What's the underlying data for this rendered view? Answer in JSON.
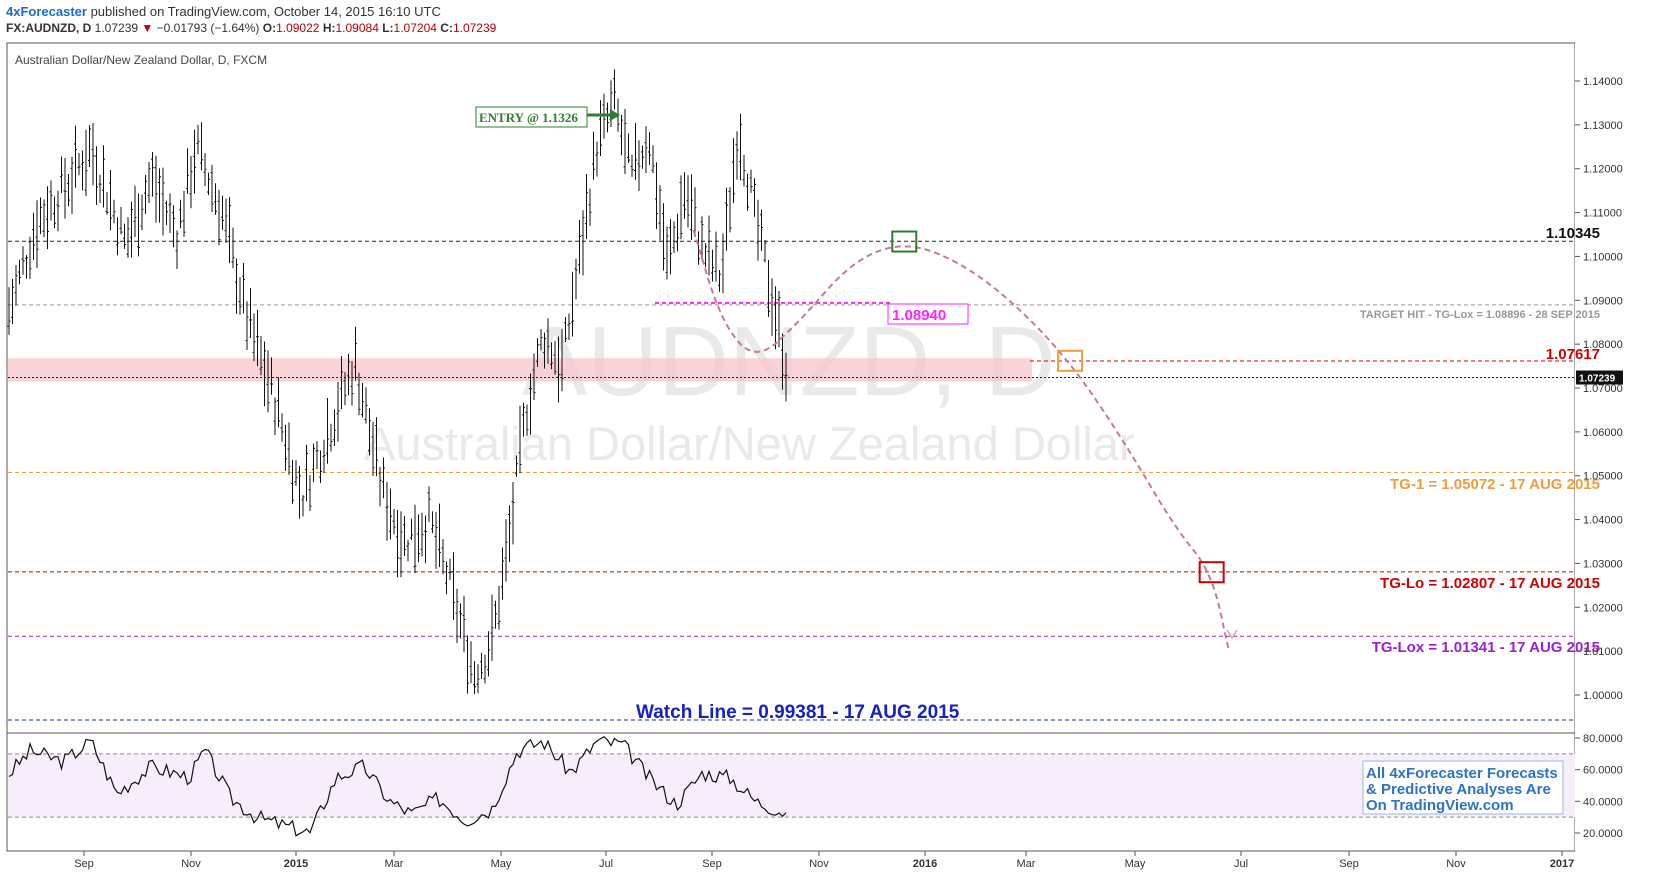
{
  "header": {
    "publisher": "4xForecaster",
    "published_text": "published on TradingView.com, October 14, 2015 16:10 UTC",
    "symbol": "FX:AUDNZD, D",
    "last": "1.07239",
    "change_arrow": "▼",
    "change": "−0.01793 (−1.64%)",
    "o_label": "O:",
    "o": "1.09022",
    "h_label": "H:",
    "h": "1.09084",
    "l_label": "L:",
    "l": "1.07204",
    "c_label": "C:",
    "c": "1.07239"
  },
  "pane_title": "Australian Dollar/New Zealand Dollar, D, FXCM",
  "watermark": {
    "symbol": "AUDNZD, D",
    "name": "Australian Dollar/New Zealand Dollar"
  },
  "colors": {
    "up": "#000000",
    "down": "#000000",
    "entry": "#2e7d32",
    "tg1": "#f39c3c",
    "tglo": "#d10000",
    "tglox": "#9b1fd6",
    "watch": "#1420c8",
    "path": "#c9789a",
    "magenta": "#ff22ff",
    "zone": "#f7c6c9"
  },
  "annotations": {
    "entry": "ENTRY @ 1.1326",
    "level_top": "1.10345",
    "level_mag": "1.08940",
    "target_hit": "TARGET HIT - TG-Lox = 1.08896 - 28 SEP 2015",
    "level_red": "1.07617",
    "tg1": "TG-1 = 1.05072 - 17 AUG 2015",
    "tglo": "TG-Lo = 1.02807 - 17 AUG 2015",
    "tglox": "TG-Lox = 1.01341 - 17 AUG 2015",
    "watch": "Watch Line = 0.99381 - 17 AUG 2015",
    "last_price_tag": "1.07239",
    "promo_line1": "All 4xForecaster Forecasts",
    "promo_line2": "& Predictive Analyses Are",
    "promo_line3": "On TradingView.com"
  },
  "chart_data": {
    "type": "line",
    "price_axis": {
      "ticks": [
        "1.14000",
        "1.13000",
        "1.12000",
        "1.11000",
        "1.10000",
        "1.09000",
        "1.08000",
        "1.07000",
        "1.06000",
        "1.05000",
        "1.04000",
        "1.03000",
        "1.02000",
        "1.01000",
        "1.00000"
      ],
      "values": [
        1.14,
        1.13,
        1.12,
        1.11,
        1.1,
        1.09,
        1.08,
        1.07,
        1.06,
        1.05,
        1.04,
        1.03,
        1.02,
        1.01,
        1.0
      ]
    },
    "indicator_axis": {
      "ticks": [
        "80.0000",
        "60.0000",
        "40.0000",
        "20.0000"
      ],
      "values": [
        80,
        60,
        40,
        20
      ],
      "bands": [
        70,
        30
      ]
    },
    "time_axis": [
      "Sep",
      "Nov",
      "2015",
      "Mar",
      "May",
      "Jul",
      "Sep",
      "Nov",
      "2016",
      "Mar",
      "May",
      "Jul",
      "Sep",
      "Nov",
      "2017"
    ],
    "levels": [
      1.10345,
      1.08896,
      1.07617,
      1.07239,
      1.05072,
      1.02807,
      1.01341,
      0.99381
    ],
    "zone": [
      1.0715,
      1.0768
    ],
    "price_path": [
      {
        "t": "2014-07-15",
        "p": 1.082
      },
      {
        "t": "2014-08-05",
        "p": 1.108
      },
      {
        "t": "2014-08-25",
        "p": 1.118
      },
      {
        "t": "2014-09-05",
        "p": 1.125
      },
      {
        "t": "2014-09-25",
        "p": 1.103
      },
      {
        "t": "2014-10-10",
        "p": 1.118
      },
      {
        "t": "2014-10-25",
        "p": 1.105
      },
      {
        "t": "2014-11-05",
        "p": 1.125
      },
      {
        "t": "2014-11-20",
        "p": 1.11
      },
      {
        "t": "2014-12-05",
        "p": 1.085
      },
      {
        "t": "2014-12-20",
        "p": 1.068
      },
      {
        "t": "2015-01-05",
        "p": 1.045
      },
      {
        "t": "2015-01-20",
        "p": 1.06
      },
      {
        "t": "2015-02-05",
        "p": 1.076
      },
      {
        "t": "2015-02-20",
        "p": 1.048
      },
      {
        "t": "2015-03-05",
        "p": 1.035
      },
      {
        "t": "2015-03-20",
        "p": 1.04
      },
      {
        "t": "2015-04-01",
        "p": 1.025
      },
      {
        "t": "2015-04-15",
        "p": 1.005
      },
      {
        "t": "2015-04-25",
        "p": 1.012
      },
      {
        "t": "2015-05-05",
        "p": 1.035
      },
      {
        "t": "2015-05-15",
        "p": 1.065
      },
      {
        "t": "2015-05-25",
        "p": 1.082
      },
      {
        "t": "2015-06-05",
        "p": 1.075
      },
      {
        "t": "2015-06-15",
        "p": 1.1
      },
      {
        "t": "2015-06-25",
        "p": 1.125
      },
      {
        "t": "2015-07-05",
        "p": 1.135
      },
      {
        "t": "2015-07-15",
        "p": 1.118
      },
      {
        "t": "2015-07-25",
        "p": 1.128
      },
      {
        "t": "2015-08-05",
        "p": 1.098
      },
      {
        "t": "2015-08-15",
        "p": 1.115
      },
      {
        "t": "2015-08-25",
        "p": 1.102
      },
      {
        "t": "2015-09-05",
        "p": 1.095
      },
      {
        "t": "2015-09-15",
        "p": 1.13
      },
      {
        "t": "2015-09-25",
        "p": 1.108
      },
      {
        "t": "2015-10-05",
        "p": 1.09
      },
      {
        "t": "2015-10-14",
        "p": 1.0724
      }
    ],
    "rsi_path": [
      {
        "t": "2014-07-15",
        "v": 52
      },
      {
        "t": "2014-08-01",
        "v": 72
      },
      {
        "t": "2014-08-20",
        "v": 65
      },
      {
        "t": "2014-09-05",
        "v": 78
      },
      {
        "t": "2014-09-20",
        "v": 45
      },
      {
        "t": "2014-10-10",
        "v": 62
      },
      {
        "t": "2014-11-01",
        "v": 55
      },
      {
        "t": "2014-11-10",
        "v": 72
      },
      {
        "t": "2014-11-25",
        "v": 42
      },
      {
        "t": "2014-12-10",
        "v": 30
      },
      {
        "t": "2014-12-25",
        "v": 25
      },
      {
        "t": "2015-01-10",
        "v": 20
      },
      {
        "t": "2015-01-25",
        "v": 55
      },
      {
        "t": "2015-02-10",
        "v": 62
      },
      {
        "t": "2015-02-25",
        "v": 40
      },
      {
        "t": "2015-03-10",
        "v": 32
      },
      {
        "t": "2015-03-25",
        "v": 42
      },
      {
        "t": "2015-04-10",
        "v": 28
      },
      {
        "t": "2015-04-25",
        "v": 35
      },
      {
        "t": "2015-05-10",
        "v": 72
      },
      {
        "t": "2015-05-25",
        "v": 78
      },
      {
        "t": "2015-06-10",
        "v": 58
      },
      {
        "t": "2015-06-25",
        "v": 78
      },
      {
        "t": "2015-07-10",
        "v": 76
      },
      {
        "t": "2015-07-25",
        "v": 55
      },
      {
        "t": "2015-08-10",
        "v": 38
      },
      {
        "t": "2015-08-25",
        "v": 58
      },
      {
        "t": "2015-09-10",
        "v": 55
      },
      {
        "t": "2015-09-25",
        "v": 40
      },
      {
        "t": "2015-10-14",
        "v": 32
      }
    ],
    "forecast_path": [
      {
        "t": "2015-08-20",
        "p": 1.106
      },
      {
        "t": "2015-09-05",
        "p": 1.085
      },
      {
        "t": "2015-09-25",
        "p": 1.076
      },
      {
        "t": "2015-10-20",
        "p": 1.085
      },
      {
        "t": "2015-11-20",
        "p": 1.099
      },
      {
        "t": "2015-12-20",
        "p": 1.1034
      },
      {
        "t": "2016-01-20",
        "p": 1.099
      },
      {
        "t": "2016-02-20",
        "p": 1.09
      },
      {
        "t": "2016-03-25",
        "p": 1.076
      },
      {
        "t": "2016-04-25",
        "p": 1.058
      },
      {
        "t": "2016-05-25",
        "p": 1.038
      },
      {
        "t": "2016-06-15",
        "p": 1.028
      },
      {
        "t": "2016-06-25",
        "p": 1.01
      }
    ]
  }
}
